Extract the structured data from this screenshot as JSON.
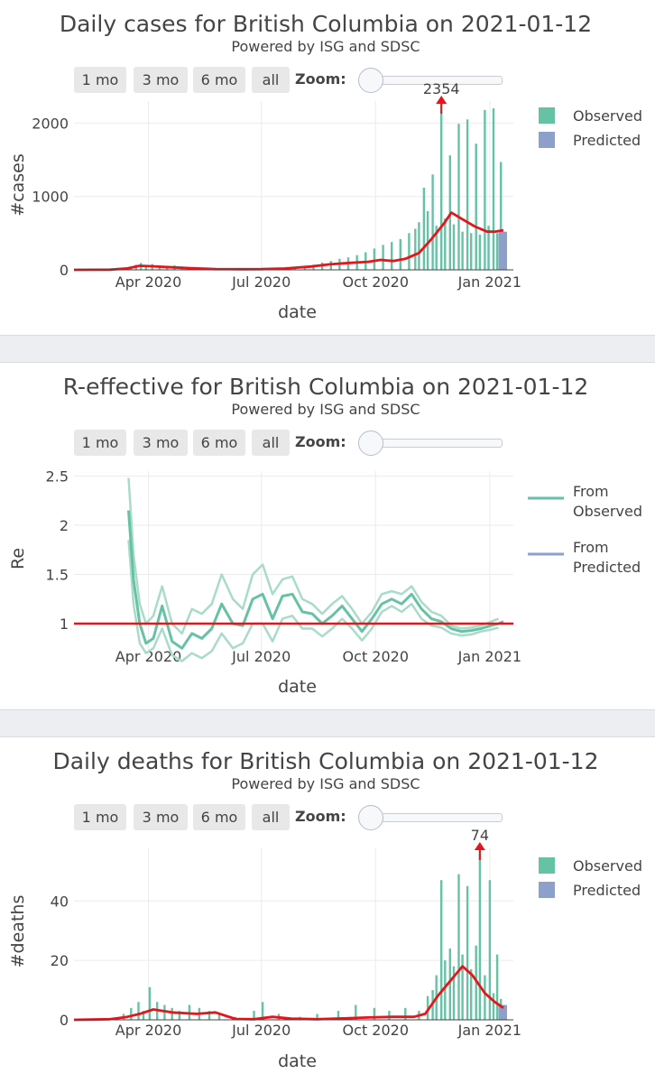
{
  "buttons": [
    "1 mo",
    "3 mo",
    "6 mo",
    "all"
  ],
  "zoom_label": "Zoom:",
  "colors": {
    "observed": "#66c2a5",
    "predicted": "#8da0cb",
    "trend": "#e8141b",
    "re_band": "#a9dcc7"
  },
  "chart_data": [
    {
      "type": "bar",
      "title": "Daily cases for British Columbia on 2021-01-12",
      "subtitle": "Powered by ISG and SDSC",
      "xlabel": "date",
      "ylabel": "#cases",
      "x_range": [
        "2020-02-01",
        "2021-01-20"
      ],
      "y_range": [
        0,
        2300
      ],
      "y_ticks": [
        0,
        1000,
        2000
      ],
      "x_ticks": [
        "Apr 2020",
        "Jul 2020",
        "Oct 2020",
        "Jan 2021"
      ],
      "legend": [
        "Observed",
        "Predicted"
      ],
      "legend_position": "top-right",
      "peak_annotation": "2354",
      "observed": {
        "dates": [
          "2020-03-18",
          "2020-03-22",
          "2020-03-26",
          "2020-03-30",
          "2020-04-04",
          "2020-04-10",
          "2020-04-16",
          "2020-04-22",
          "2020-04-28",
          "2020-05-06",
          "2020-05-14",
          "2020-05-22",
          "2020-06-01",
          "2020-06-10",
          "2020-06-20",
          "2020-06-30",
          "2020-07-10",
          "2020-07-20",
          "2020-07-28",
          "2020-08-05",
          "2020-08-12",
          "2020-08-19",
          "2020-08-26",
          "2020-09-02",
          "2020-09-09",
          "2020-09-16",
          "2020-09-23",
          "2020-09-30",
          "2020-10-07",
          "2020-10-14",
          "2020-10-21",
          "2020-10-28",
          "2020-11-02",
          "2020-11-05",
          "2020-11-09",
          "2020-11-12",
          "2020-11-16",
          "2020-11-19",
          "2020-11-23",
          "2020-11-26",
          "2020-11-30",
          "2020-12-03",
          "2020-12-07",
          "2020-12-10",
          "2020-12-14",
          "2020-12-17",
          "2020-12-21",
          "2020-12-24",
          "2020-12-28",
          "2020-12-31",
          "2021-01-04",
          "2021-01-07",
          "2021-01-10"
        ],
        "values": [
          45,
          70,
          95,
          55,
          80,
          60,
          50,
          60,
          45,
          30,
          20,
          15,
          10,
          15,
          12,
          10,
          20,
          25,
          35,
          50,
          70,
          100,
          120,
          150,
          170,
          200,
          240,
          290,
          340,
          380,
          420,
          500,
          560,
          650,
          1120,
          800,
          1300,
          600,
          2354,
          700,
          1560,
          620,
          1990,
          520,
          2050,
          500,
          1720,
          480,
          2180,
          600,
          2200,
          500,
          1470
        ]
      },
      "predicted": {
        "dates": [
          "2021-01-11",
          "2021-01-12"
        ],
        "values": [
          510,
          520
        ]
      },
      "trend": {
        "dates": [
          "2020-02-01",
          "2020-03-01",
          "2020-03-15",
          "2020-03-25",
          "2020-04-05",
          "2020-04-20",
          "2020-05-05",
          "2020-05-25",
          "2020-06-15",
          "2020-07-01",
          "2020-07-20",
          "2020-08-10",
          "2020-08-25",
          "2020-09-10",
          "2020-09-25",
          "2020-10-05",
          "2020-10-15",
          "2020-10-25",
          "2020-11-05",
          "2020-11-15",
          "2020-11-25",
          "2020-12-01",
          "2020-12-10",
          "2020-12-20",
          "2020-12-30",
          "2021-01-05",
          "2021-01-12"
        ],
        "values": [
          0,
          2,
          20,
          55,
          48,
          35,
          22,
          10,
          8,
          10,
          18,
          45,
          75,
          95,
          110,
          135,
          120,
          150,
          230,
          420,
          630,
          780,
          690,
          590,
          520,
          520,
          540
        ]
      }
    },
    {
      "type": "line",
      "title": "R-effective for British Columbia on 2021-01-12",
      "subtitle": "Powered by ISG and SDSC",
      "xlabel": "date",
      "ylabel": "Re",
      "x_range": [
        "2020-02-01",
        "2021-01-20"
      ],
      "y_range": [
        0.67,
        2.55
      ],
      "y_ticks": [
        1,
        1.5,
        2,
        2.5
      ],
      "y_tick_labels": [
        "1",
        "1.5",
        "2",
        "2.5"
      ],
      "x_ticks": [
        "Apr 2020",
        "Jul 2020",
        "Oct 2020",
        "Jan 2021"
      ],
      "legend": [
        "From Observed",
        "From Predicted"
      ],
      "legend_position": "top-right",
      "reference_line": 1,
      "series": [
        {
          "name": "From Observed",
          "dates": [
            "2020-03-16",
            "2020-03-20",
            "2020-03-25",
            "2020-03-30",
            "2020-04-05",
            "2020-04-12",
            "2020-04-20",
            "2020-04-28",
            "2020-05-06",
            "2020-05-14",
            "2020-05-22",
            "2020-05-30",
            "2020-06-08",
            "2020-06-16",
            "2020-06-24",
            "2020-07-02",
            "2020-07-10",
            "2020-07-18",
            "2020-07-26",
            "2020-08-03",
            "2020-08-11",
            "2020-08-19",
            "2020-08-27",
            "2020-09-04",
            "2020-09-12",
            "2020-09-20",
            "2020-09-28",
            "2020-10-06",
            "2020-10-14",
            "2020-10-22",
            "2020-10-30",
            "2020-11-07",
            "2020-11-15",
            "2020-11-23",
            "2020-12-01",
            "2020-12-09",
            "2020-12-17",
            "2020-12-25",
            "2021-01-02",
            "2021-01-08"
          ],
          "values": [
            2.15,
            1.45,
            1.0,
            0.8,
            0.85,
            1.18,
            0.82,
            0.75,
            0.9,
            0.85,
            0.95,
            1.2,
            1.0,
            0.98,
            1.25,
            1.3,
            1.05,
            1.28,
            1.3,
            1.12,
            1.1,
            1.0,
            1.08,
            1.18,
            1.05,
            0.92,
            1.05,
            1.2,
            1.25,
            1.2,
            1.3,
            1.15,
            1.05,
            1.02,
            0.95,
            0.92,
            0.93,
            0.95,
            0.98,
            1.0
          ]
        },
        {
          "name": "From Predicted",
          "dates": [
            "2021-01-08",
            "2021-01-12"
          ],
          "values": [
            1.0,
            1.02
          ]
        }
      ],
      "band": {
        "upper": [
          2.48,
          1.7,
          1.2,
          1.0,
          1.08,
          1.38,
          1.0,
          0.9,
          1.15,
          1.1,
          1.2,
          1.5,
          1.25,
          1.15,
          1.5,
          1.6,
          1.3,
          1.45,
          1.48,
          1.25,
          1.2,
          1.1,
          1.2,
          1.28,
          1.15,
          1.0,
          1.12,
          1.3,
          1.33,
          1.3,
          1.38,
          1.22,
          1.12,
          1.08,
          0.98,
          0.95,
          0.96,
          0.98,
          1.02,
          1.05
        ],
        "lower": [
          1.85,
          1.2,
          0.8,
          0.7,
          0.75,
          0.95,
          0.68,
          0.62,
          0.7,
          0.65,
          0.72,
          0.9,
          0.75,
          0.8,
          1.0,
          1.0,
          0.82,
          1.05,
          1.08,
          0.95,
          0.95,
          0.87,
          0.95,
          1.05,
          0.95,
          0.83,
          0.95,
          1.12,
          1.18,
          1.12,
          1.2,
          1.05,
          0.98,
          0.96,
          0.9,
          0.88,
          0.89,
          0.92,
          0.94,
          0.96
        ]
      }
    },
    {
      "type": "bar",
      "title": "Daily deaths for British Columbia on 2021-01-12",
      "subtitle": "Powered by ISG and SDSC",
      "xlabel": "date",
      "ylabel": "#deaths",
      "x_range": [
        "2020-02-01",
        "2021-01-20"
      ],
      "y_range": [
        0,
        58
      ],
      "y_ticks": [
        0,
        20,
        40
      ],
      "x_ticks": [
        "Apr 2020",
        "Jul 2020",
        "Oct 2020",
        "Jan 2021"
      ],
      "legend": [
        "Observed",
        "Predicted"
      ],
      "legend_position": "top-right",
      "peak_annotation": "74",
      "observed": {
        "dates": [
          "2020-03-12",
          "2020-03-18",
          "2020-03-24",
          "2020-03-28",
          "2020-04-02",
          "2020-04-08",
          "2020-04-14",
          "2020-04-20",
          "2020-04-26",
          "2020-05-04",
          "2020-05-12",
          "2020-05-20",
          "2020-05-28",
          "2020-06-10",
          "2020-06-25",
          "2020-07-02",
          "2020-07-15",
          "2020-08-01",
          "2020-08-15",
          "2020-09-01",
          "2020-09-15",
          "2020-09-30",
          "2020-10-12",
          "2020-10-25",
          "2020-11-05",
          "2020-11-12",
          "2020-11-16",
          "2020-11-19",
          "2020-11-23",
          "2020-11-26",
          "2020-11-30",
          "2020-12-03",
          "2020-12-07",
          "2020-12-10",
          "2020-12-14",
          "2020-12-17",
          "2020-12-21",
          "2020-12-24",
          "2020-12-28",
          "2021-01-01",
          "2021-01-04",
          "2021-01-07",
          "2021-01-10"
        ],
        "values": [
          2,
          4,
          6,
          3,
          11,
          6,
          5,
          4,
          3,
          5,
          4,
          3,
          2,
          1,
          3,
          6,
          2,
          1,
          2,
          3,
          5,
          4,
          3,
          4,
          3,
          8,
          10,
          15,
          47,
          20,
          24,
          18,
          49,
          22,
          45,
          17,
          25,
          74,
          15,
          47,
          9,
          22,
          7
        ]
      },
      "predicted": {
        "dates": [
          "2021-01-11",
          "2021-01-12"
        ],
        "values": [
          5,
          5
        ]
      },
      "trend": {
        "dates": [
          "2020-02-01",
          "2020-03-01",
          "2020-03-15",
          "2020-03-25",
          "2020-04-05",
          "2020-04-20",
          "2020-05-10",
          "2020-05-25",
          "2020-06-10",
          "2020-06-25",
          "2020-07-10",
          "2020-07-25",
          "2020-08-15",
          "2020-09-05",
          "2020-09-25",
          "2020-10-15",
          "2020-11-01",
          "2020-11-10",
          "2020-11-20",
          "2020-11-30",
          "2020-12-10",
          "2020-12-18",
          "2020-12-28",
          "2021-01-05",
          "2021-01-12"
        ],
        "values": [
          0,
          0.2,
          1,
          2,
          3.5,
          2.5,
          2,
          2.5,
          0.3,
          0.2,
          1,
          0.4,
          0.2,
          0.5,
          0.8,
          1,
          1,
          2,
          8,
          13,
          18,
          15,
          9,
          6,
          4
        ]
      }
    }
  ]
}
